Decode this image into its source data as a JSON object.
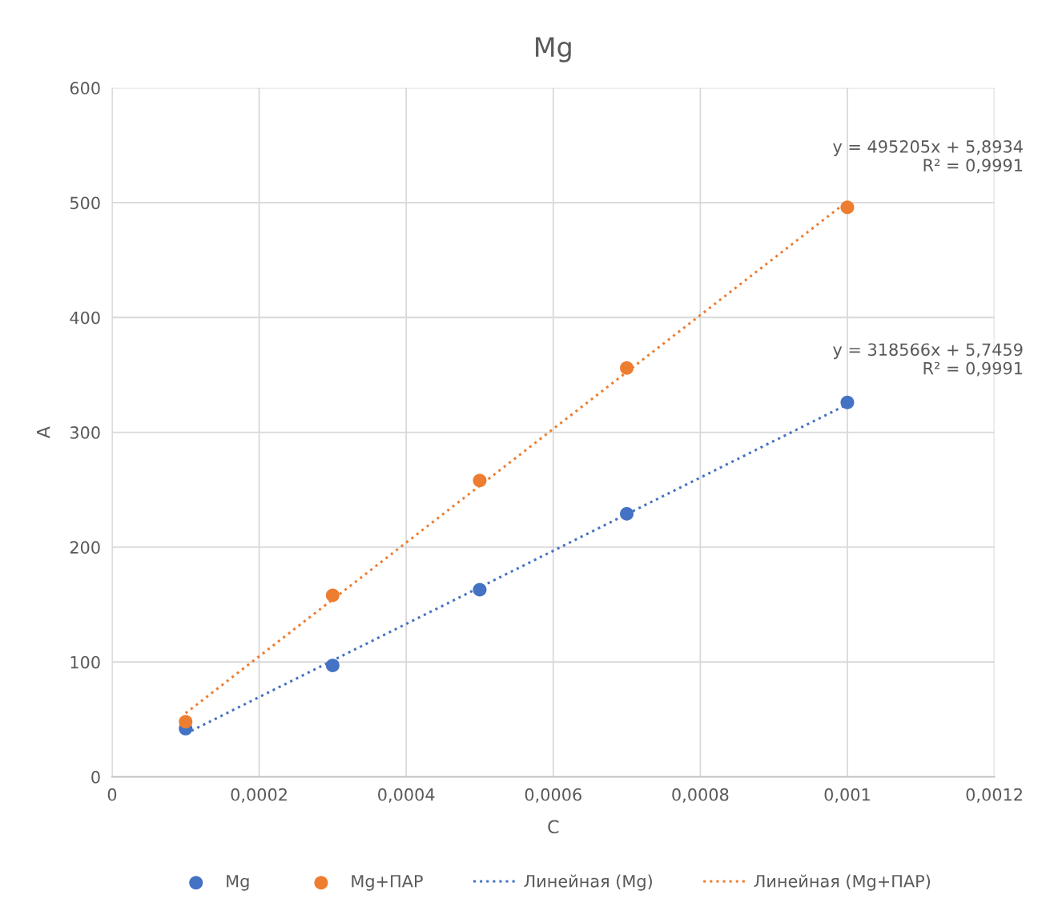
{
  "chart_data": {
    "type": "scatter",
    "title": "Mg",
    "xlabel": "C",
    "ylabel": "A",
    "xlim": [
      0,
      0.0012
    ],
    "ylim": [
      0,
      600
    ],
    "xticks": [
      0,
      {
        "value": 0.0002,
        "label": "0,0002"
      },
      {
        "value": 0.0004,
        "label": "0,0004"
      },
      {
        "value": 0.0006,
        "label": "0,0006"
      },
      {
        "value": 0.0008,
        "label": "0,0008"
      },
      {
        "value": 0.001,
        "label": "0,001"
      },
      {
        "value": 0.0012,
        "label": "0,0012"
      }
    ],
    "yticks": [
      0,
      100,
      200,
      300,
      400,
      500,
      600
    ],
    "grid": true,
    "legend": "bottom",
    "marker": "circle",
    "series": [
      {
        "name": "Mg",
        "color": "#4472c4",
        "x": [
          0.0001,
          0.0003,
          0.0005,
          0.0007,
          0.001
        ],
        "values": [
          42,
          97,
          163,
          229,
          326
        ]
      },
      {
        "name": "Mg+ПАР",
        "color": "#ed7d31",
        "x": [
          0.0001,
          0.0003,
          0.0005,
          0.0007,
          0.001
        ],
        "values": [
          48,
          158,
          258,
          356,
          496
        ]
      },
      {
        "name": "Линейная (Mg)",
        "type": "line",
        "marker": "none",
        "line_style": "dotted",
        "color": "#4472c4",
        "x": [
          0.0001,
          0.001
        ],
        "values": [
          37.6,
          324.3
        ]
      },
      {
        "name": "Линейная (Mg+ПАР)",
        "type": "line",
        "marker": "none",
        "line_style": "dotted",
        "color": "#ed7d31",
        "x": [
          0.0001,
          0.001
        ],
        "values": [
          55.4,
          501.1
        ]
      }
    ],
    "annotations": [
      {
        "text": "y = 495205x + 5,8934\nR² = 0,9991",
        "x": 0.001,
        "y": 501.1
      },
      {
        "text": "y = 318566x + 5,7459\nR² = 0,9991",
        "x": 0.001,
        "y": 324.3
      }
    ]
  }
}
